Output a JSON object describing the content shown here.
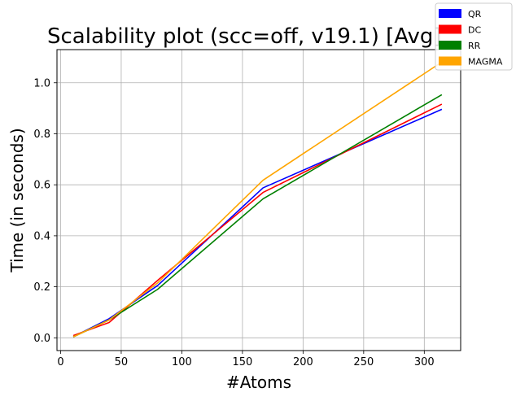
{
  "chart_data": {
    "type": "line",
    "title": "Scalability plot (scc=off, v19.1) [Avg]",
    "xlabel": "#Atoms",
    "ylabel": "Time (in seconds)",
    "xlim": [
      -3,
      330
    ],
    "ylim": [
      -0.05,
      1.13
    ],
    "xticks": [
      0,
      50,
      100,
      150,
      200,
      250,
      300
    ],
    "yticks": [
      0.0,
      0.2,
      0.4,
      0.6,
      0.8,
      1.0
    ],
    "grid": true,
    "legend_position": "top-right",
    "x": [
      11,
      40,
      80,
      167,
      314
    ],
    "series": [
      {
        "name": "QR",
        "color": "#0000ff",
        "values": [
          0.005,
          0.075,
          0.205,
          0.588,
          0.895
        ]
      },
      {
        "name": "DC",
        "color": "#ff0000",
        "values": [
          0.01,
          0.06,
          0.225,
          0.57,
          0.915
        ]
      },
      {
        "name": "RR",
        "color": "#008000",
        "values": [
          0.005,
          0.07,
          0.19,
          0.545,
          0.952
        ]
      },
      {
        "name": "MAGMA",
        "color": "#ffa500",
        "values": [
          0.005,
          0.07,
          0.215,
          0.618,
          1.08
        ]
      }
    ]
  }
}
